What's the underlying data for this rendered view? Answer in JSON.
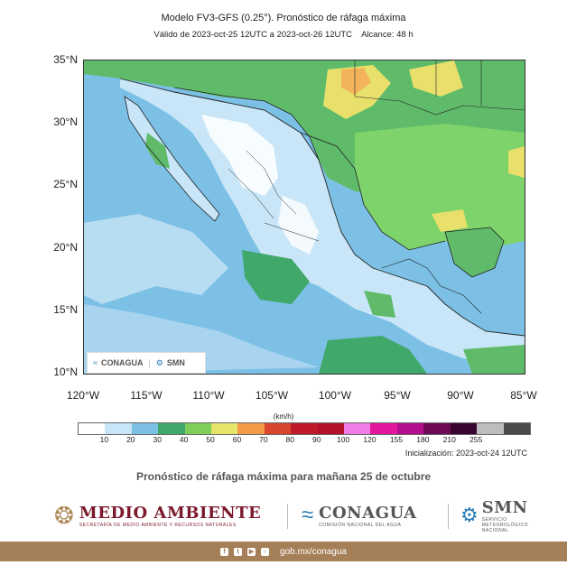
{
  "header": {
    "title": "Modelo FV3-GFS (0.25°). Pronóstico de ráfaga máxima",
    "subtitle": "Válido de 2023-oct-25 12UTC a 2023-oct-26 12UTC    Alcance: 48 h"
  },
  "axes": {
    "lat_labels": [
      "35°N",
      "30°N",
      "25°N",
      "20°N",
      "15°N",
      "10°N"
    ],
    "lon_labels": [
      "120°W",
      "115°W",
      "110°W",
      "105°W",
      "100°W",
      "95°W",
      "90°W",
      "85°W"
    ]
  },
  "inset_logos": {
    "conagua": "CONAGUA",
    "smn": "SMN"
  },
  "colorbar": {
    "unit": "(km/h)",
    "colors": [
      "#ffffff",
      "#c8e6f7",
      "#7cc0e6",
      "#41a86b",
      "#7fcf5a",
      "#e6e56a",
      "#f29a45",
      "#d8462e",
      "#c01a2a",
      "#b3102a",
      "#f07de6",
      "#e3159c",
      "#b40e8f",
      "#6e0a55",
      "#3a0631",
      "#bdbdbd",
      "#4a4a4a"
    ],
    "labels": [
      "10",
      "20",
      "30",
      "40",
      "50",
      "60",
      "70",
      "80",
      "90",
      "100",
      "120",
      "155",
      "180",
      "210",
      "255"
    ]
  },
  "init_text": "Inicialización: 2023-oct-24 12UTC",
  "caption": "Pronóstico de ráfaga máxima para mañana 25 de octubre",
  "footer": {
    "medio_ambiente": "MEDIO AMBIENTE",
    "medio_ambiente_sub": "SECRETARÍA DE MEDIO AMBIENTE Y RECURSOS NATURALES",
    "conagua": "CONAGUA",
    "conagua_sub": "COMISIÓN NACIONAL DEL AGUA",
    "smn": "SMN",
    "smn_sub": "SERVICIO METEOROLÓGICO NACIONAL",
    "url": "gob.mx/conagua"
  }
}
